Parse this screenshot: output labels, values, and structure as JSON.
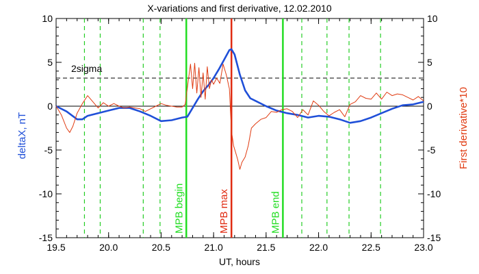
{
  "chart_data": {
    "type": "line",
    "title": "X-variations and first derivative, 12.02.2010",
    "xlabel": "UT, hours",
    "ylabel_left": "deltaX, nT",
    "ylabel_right": "First derivative*10",
    "xlim": [
      19.5,
      23.0
    ],
    "ylim": [
      -15,
      10
    ],
    "x_ticks": [
      "19.5",
      "20.0",
      "20.5",
      "21.0",
      "21.5",
      "22.0",
      "22.5",
      "23.0"
    ],
    "y_ticks": [
      "10",
      "5",
      "0",
      "-5",
      "-10",
      "-15"
    ],
    "grid": false,
    "colors": {
      "deltax": "#1f4fd8",
      "derivative": "#e03a10",
      "marker_green": "#22dd22",
      "marker_red": "#e02a10",
      "dashed_green": "#22cc22"
    },
    "threshold": {
      "label": "2sigma",
      "value": 3.2
    },
    "zero_line": 0,
    "dashed_markers": [
      19.77,
      19.92,
      20.33,
      20.49,
      21.84,
      22.08,
      22.29,
      22.59
    ],
    "vertical_markers": [
      {
        "label": "MPB begin",
        "x": 20.74,
        "color": "#22dd22"
      },
      {
        "label": "MPB max",
        "x": 21.17,
        "color": "#e02a10"
      },
      {
        "label": "MPB end",
        "x": 21.66,
        "color": "#22dd22"
      }
    ],
    "series": [
      {
        "key": "deltax",
        "x": [
          19.5,
          19.6,
          19.7,
          19.75,
          19.8,
          19.9,
          20.0,
          20.1,
          20.2,
          20.3,
          20.4,
          20.5,
          20.6,
          20.7,
          20.75,
          20.8,
          20.85,
          20.9,
          20.95,
          21.0,
          21.05,
          21.1,
          21.15,
          21.17,
          21.2,
          21.25,
          21.3,
          21.35,
          21.4,
          21.5,
          21.6,
          21.7,
          21.8,
          21.9,
          22.0,
          22.1,
          22.2,
          22.3,
          22.4,
          22.5,
          22.6,
          22.7,
          22.8,
          22.9,
          23.0
        ],
        "y": [
          0.0,
          -0.6,
          -1.5,
          -1.5,
          -1.1,
          -0.8,
          -0.5,
          -0.2,
          -0.2,
          -0.6,
          -1.1,
          -1.7,
          -1.6,
          -1.3,
          -1.2,
          -0.2,
          0.8,
          1.7,
          2.4,
          3.2,
          4.2,
          5.3,
          6.4,
          6.5,
          5.9,
          3.6,
          1.8,
          0.9,
          0.6,
          0.0,
          -0.5,
          -0.8,
          -1.0,
          -1.3,
          -1.1,
          -1.2,
          -1.5,
          -1.9,
          -1.7,
          -1.3,
          -0.8,
          -0.3,
          0.1,
          0.2,
          0.5
        ]
      },
      {
        "key": "derivative",
        "x": [
          19.5,
          19.55,
          19.6,
          19.63,
          19.66,
          19.7,
          19.75,
          19.8,
          19.85,
          19.9,
          19.95,
          20.0,
          20.05,
          20.1,
          20.15,
          20.2,
          20.25,
          20.3,
          20.35,
          20.4,
          20.45,
          20.5,
          20.55,
          20.6,
          20.65,
          20.7,
          20.73,
          20.76,
          20.78,
          20.8,
          20.82,
          20.84,
          20.86,
          20.88,
          20.9,
          20.92,
          20.94,
          20.96,
          20.98,
          21.0,
          21.03,
          21.06,
          21.09,
          21.12,
          21.15,
          21.17,
          21.19,
          21.21,
          21.23,
          21.25,
          21.27,
          21.3,
          21.33,
          21.36,
          21.4,
          21.45,
          21.5,
          21.55,
          21.6,
          21.65,
          21.7,
          21.75,
          21.8,
          21.85,
          21.9,
          21.95,
          22.0,
          22.05,
          22.1,
          22.15,
          22.2,
          22.25,
          22.3,
          22.35,
          22.4,
          22.45,
          22.5,
          22.55,
          22.6,
          22.65,
          22.7,
          22.75,
          22.8,
          22.85,
          22.9,
          22.95,
          23.0
        ],
        "y": [
          0.0,
          -1.0,
          -2.5,
          -3.0,
          -2.3,
          -0.8,
          0.3,
          1.2,
          0.5,
          -0.2,
          0.4,
          0.0,
          0.3,
          0.0,
          -0.2,
          -0.1,
          -0.2,
          -0.3,
          -0.6,
          -0.3,
          0.0,
          0.3,
          0.1,
          0.0,
          -0.1,
          -0.1,
          0.2,
          3.0,
          4.8,
          2.0,
          4.9,
          1.5,
          4.4,
          1.0,
          3.8,
          0.8,
          4.5,
          2.0,
          3.0,
          2.5,
          3.2,
          2.6,
          4.8,
          3.6,
          2.0,
          -2.8,
          -4.5,
          -5.3,
          -6.1,
          -7.2,
          -6.4,
          -5.8,
          -4.5,
          -2.5,
          -2.0,
          -1.5,
          -1.3,
          -0.6,
          -0.7,
          -0.4,
          -0.3,
          -0.6,
          -1.3,
          -0.4,
          -1.0,
          0.6,
          0.1,
          -0.6,
          -1.1,
          -0.7,
          -0.4,
          -1.2,
          0.2,
          0.5,
          1.2,
          0.9,
          0.8,
          1.5,
          0.8,
          1.6,
          1.2,
          1.4,
          1.3,
          1.0,
          0.7,
          1.1,
          0.6
        ]
      }
    ]
  }
}
